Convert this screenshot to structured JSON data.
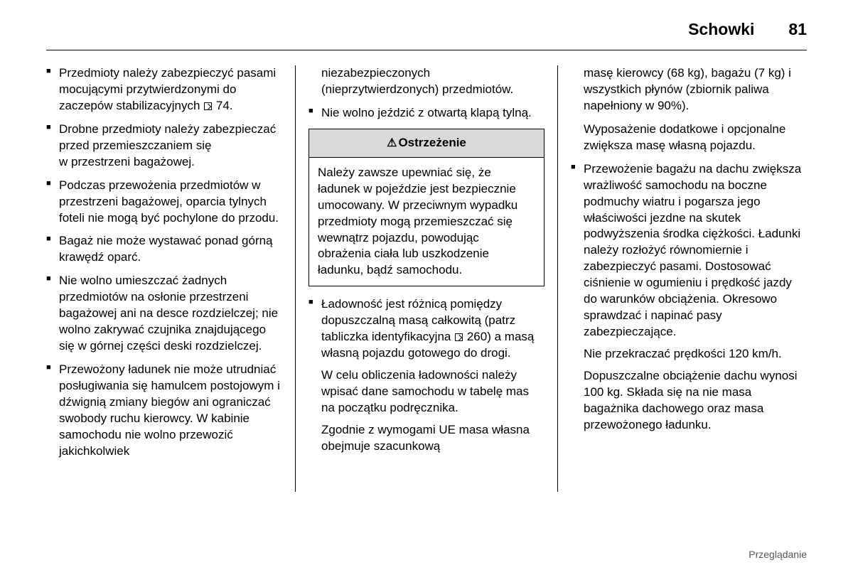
{
  "header": {
    "section": "Schowki",
    "page": "81"
  },
  "col1": {
    "items": [
      "Przedmioty należy zabezpieczyć pasami mocującymi przytwierdzonymi do zaczepów stabilizacyjnych",
      "Drobne przedmioty należy zabezpieczać przed przemieszczaniem się w przestrzeni bagażowej.",
      "Podczas przewożenia przedmiotów w przestrzeni bagażowej, oparcia tylnych foteli nie mogą być pochylone do przodu.",
      "Bagaż nie może wystawać ponad górną krawędź oparć.",
      "Nie wolno umieszczać żadnych przedmiotów na osłonie przestrzeni bagażowej ani na desce rozdzielczej; nie wolno zakrywać czujnika znajdującego się w górnej części deski rozdzielczej.",
      "Przewożony ładunek nie może utrudniać posługiwania się hamulcem postojowym i dźwignią zmiany biegów ani ograniczać swobody ruchu kierowcy. W kabinie samochodu nie wolno przewozić jakichkolwiek"
    ],
    "ref1": "74."
  },
  "col2": {
    "continuation": "niezabezpieczonych (nieprzytwierdzonych) przedmiotów.",
    "item_trunk": "Nie wolno jeździć z otwartą klapą tylną.",
    "warning_title": "Ostrzeżenie",
    "warning_body": "Należy zawsze upewniać się, że ładunek w pojeździe jest bezpiecznie umocowany. W przeciwnym wypadku przedmioty mogą przemieszczać się wewnątrz pojazdu, powodując obrażenia ciała lub uszkodzenie ładunku, bądź samochodu.",
    "payload_item_a": "Ładowność jest różnicą pomiędzy dopuszczalną masą całkowitą (patrz tabliczka identyfikacyjna",
    "payload_ref": "260",
    "payload_item_b": ") a masą własną pojazdu gotowego do drogi.",
    "payload_sub1": "W celu obliczenia ładowności należy wpisać dane samochodu w tabelę mas na początku podręcznika.",
    "payload_sub2": "Zgodnie z wymogami UE masa własna obejmuje szacunkową"
  },
  "col3": {
    "continuation1": "masę kierowcy (68 kg), bagażu (7 kg) i wszystkich płynów (zbiornik paliwa napełniony w 90%).",
    "continuation2": "Wyposażenie dodatkowe i opcjonalne zwiększa masę własną pojazdu.",
    "roof_item": "Przewożenie bagażu na dachu zwiększa wrażliwość samochodu na boczne podmuchy wiatru i pogarsza jego właściwości jezdne na skutek podwyższenia środka ciężkości. Ładunki należy rozłożyć równomiernie i zabezpieczyć pasami. Dostosować ciśnienie w ogumieniu i prędkość jazdy do warunków obciążenia. Okresowo sprawdzać i napinać pasy zabezpieczające.",
    "roof_sub1": "Nie przekraczać prędkości 120 km/h.",
    "roof_sub2": "Dopuszczalne obciążenie dachu wynosi 100 kg. Składa się na nie masa bagażnika dachowego oraz masa przewożonego ładunku."
  },
  "footer": "Przeglądanie"
}
